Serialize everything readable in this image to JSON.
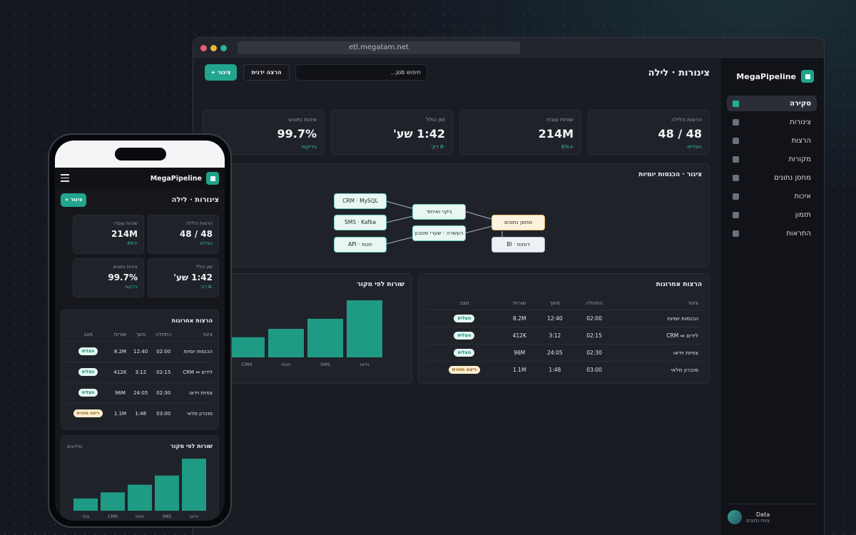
{
  "browser": {
    "url": "etl.megatam.net"
  },
  "app": {
    "name": "MegaPipeline"
  },
  "sidebar": {
    "items": [
      {
        "label": "סקירה",
        "active": true
      },
      {
        "label": "צינורות"
      },
      {
        "label": "הרצות"
      },
      {
        "label": "מקורות"
      },
      {
        "label": "מחסן נתונים"
      },
      {
        "label": "איכות"
      },
      {
        "label": "תזמון"
      },
      {
        "label": "התראות"
      }
    ],
    "footer": {
      "name": "Data",
      "sub": "צוות נתונים"
    }
  },
  "header": {
    "title": "צינורות · לילה",
    "search_placeholder": "חיפוש job...",
    "run_button": "הרצה ידנית",
    "add_button": "+ צינור"
  },
  "kpis": [
    {
      "label": "הרצות הלילה",
      "value": "48 / 48",
      "delta": "הצליחו"
    },
    {
      "label": "שורות עובדו",
      "value": "214M",
      "delta": "+6%"
    },
    {
      "label": "זמן כולל",
      "value": "1:42 שע'",
      "delta": "-8 דק'"
    },
    {
      "label": "איכות נתונים",
      "value": "99.7%",
      "delta": "בדיקות"
    }
  ],
  "flow": {
    "title": "צינור · הכנסות יומיות",
    "sources": [
      "CRM · MySQL",
      "SMS · Kafka",
      "API · חנות"
    ],
    "transforms": [
      "ניקוי ואיחוד",
      "העשרה · שערי מטבע"
    ],
    "warehouse": "מחסן נתונים",
    "bi": "BI · דוחות"
  },
  "runs": {
    "title": "הרצות אחרונות",
    "columns": [
      "צינור",
      "התחלה",
      "משך",
      "שורות",
      "מצב"
    ],
    "rows": [
      {
        "name": "הכנסות יומיות",
        "start": "02:00",
        "duration": "12:40",
        "rows": "8.2M",
        "status": "הצליח",
        "kind": "ok"
      },
      {
        "name": "לידים ⇔ CRM",
        "start": "02:15",
        "duration": "3:12",
        "rows": "412K",
        "status": "הצליח",
        "kind": "ok"
      },
      {
        "name": "צפיות וידאו",
        "start": "02:30",
        "duration": "24:05",
        "rows": "96M",
        "status": "הצליח",
        "kind": "ok"
      },
      {
        "name": "סנכרון מלאי",
        "start": "03:00",
        "duration": "1:48",
        "rows": "1.1M",
        "status": "ריצה חוזרת",
        "kind": "retry"
      }
    ]
  },
  "chart_data": {
    "type": "bar",
    "title": "שורות לפי מקור",
    "ylabel": "מיליונים",
    "categories": [
      "אחר",
      "CRM",
      "חנות",
      "SMS",
      "וידאו"
    ],
    "values": [
      8,
      12,
      17,
      23,
      34
    ]
  },
  "colors": {
    "accent": "#21a58e",
    "ok": "#10806b",
    "retry": "#8a5a10"
  }
}
